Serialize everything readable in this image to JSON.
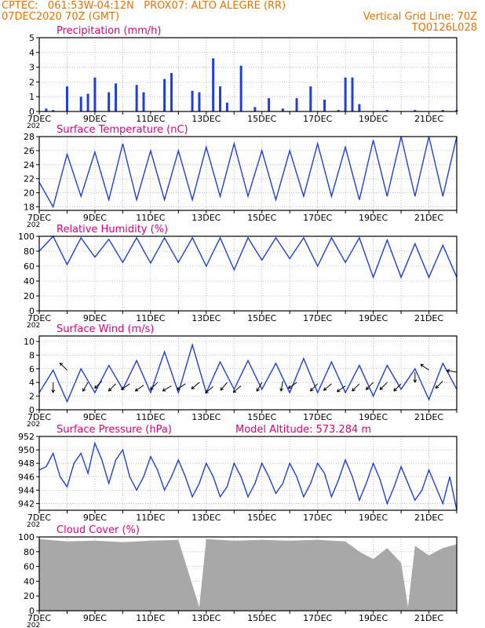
{
  "header": {
    "line1": "CPTEC:   061:53W-04:12N   PROX07: ALTO ALEGRE (RR)",
    "line2_left": "07DEC2020 70Z (GMT)",
    "line2_right": "Vertical Grid Line: 70Z",
    "line3_right": "TQ0126L028"
  },
  "colors": {
    "header": "#e67300",
    "title": "#e0007a",
    "series": "#1f3fdd",
    "cloud": "#a8a8a8",
    "arrow": "#000000"
  },
  "x_axis": {
    "start": "2020-12-07",
    "end": "2020-12-22",
    "ticks": [
      "7DEC",
      "9DEC",
      "11DEC",
      "13DEC",
      "15DEC",
      "17DEC",
      "19DEC",
      "21DEC"
    ],
    "cut_label": "202"
  },
  "chart_data": [
    {
      "id": "precip",
      "type": "bar",
      "title": "Precipitation (mm/h)",
      "ylim": [
        0,
        5
      ],
      "yticks": [
        0,
        1,
        2,
        3,
        4,
        5
      ],
      "x": [
        "2020-12-07T06",
        "2020-12-07T12",
        "2020-12-08T00",
        "2020-12-08T12",
        "2020-12-08T18",
        "2020-12-09T00",
        "2020-12-09T12",
        "2020-12-09T18",
        "2020-12-10T12",
        "2020-12-10T18",
        "2020-12-11T12",
        "2020-12-11T18",
        "2020-12-12T12",
        "2020-12-12T18",
        "2020-12-13T06",
        "2020-12-13T12",
        "2020-12-13T18",
        "2020-12-14T06",
        "2020-12-14T18",
        "2020-12-15T06",
        "2020-12-15T18",
        "2020-12-16T06",
        "2020-12-16T18",
        "2020-12-17T06",
        "2020-12-17T18",
        "2020-12-18T00",
        "2020-12-18T06",
        "2020-12-18T12",
        "2020-12-19T12",
        "2020-12-20T12",
        "2020-12-21T12",
        "2020-12-22T00"
      ],
      "values": [
        0.2,
        0.1,
        1.7,
        1.0,
        1.2,
        2.3,
        1.3,
        1.9,
        1.8,
        1.3,
        2.2,
        2.6,
        1.4,
        1.3,
        3.6,
        1.7,
        0.6,
        3.1,
        0.3,
        0.9,
        0.2,
        0.9,
        1.7,
        0.8,
        0.1,
        2.3,
        2.3,
        0.5,
        0.1,
        0.1,
        0.1,
        0.1
      ]
    },
    {
      "id": "temp",
      "type": "line",
      "title": "Surface Temperature (nC)",
      "ylim": [
        17.5,
        28
      ],
      "yticks": [
        18,
        20,
        22,
        24,
        26,
        28
      ],
      "x": [
        "2020-12-07T00",
        "2020-12-07T12",
        "2020-12-08T00",
        "2020-12-08T12",
        "2020-12-09T00",
        "2020-12-09T12",
        "2020-12-10T00",
        "2020-12-10T12",
        "2020-12-11T00",
        "2020-12-11T12",
        "2020-12-12T00",
        "2020-12-12T12",
        "2020-12-13T00",
        "2020-12-13T12",
        "2020-12-14T00",
        "2020-12-14T12",
        "2020-12-15T00",
        "2020-12-15T12",
        "2020-12-16T00",
        "2020-12-16T12",
        "2020-12-17T00",
        "2020-12-17T12",
        "2020-12-18T00",
        "2020-12-18T12",
        "2020-12-19T00",
        "2020-12-19T12",
        "2020-12-20T00",
        "2020-12-20T12",
        "2020-12-21T00",
        "2020-12-21T12",
        "2020-12-22T00"
      ],
      "values": [
        21.5,
        18.0,
        25.5,
        19.5,
        25.8,
        19.0,
        27.0,
        19.0,
        26.0,
        19.0,
        26.0,
        19.0,
        26.5,
        19.5,
        27.0,
        19.5,
        26.0,
        19.0,
        26.0,
        19.5,
        27.0,
        19.5,
        26.5,
        19.0,
        27.5,
        19.5,
        28.0,
        19.5,
        28.0,
        19.5,
        28.0
      ]
    },
    {
      "id": "rh",
      "type": "line",
      "title": "Relative Humidity (%)",
      "ylim": [
        0,
        100
      ],
      "yticks": [
        0,
        20,
        40,
        60,
        80,
        100
      ],
      "x": [
        "2020-12-07T00",
        "2020-12-07T12",
        "2020-12-08T00",
        "2020-12-08T12",
        "2020-12-09T00",
        "2020-12-09T12",
        "2020-12-10T00",
        "2020-12-10T12",
        "2020-12-11T00",
        "2020-12-11T12",
        "2020-12-12T00",
        "2020-12-12T12",
        "2020-12-13T00",
        "2020-12-13T12",
        "2020-12-14T00",
        "2020-12-14T12",
        "2020-12-15T00",
        "2020-12-15T12",
        "2020-12-16T00",
        "2020-12-16T12",
        "2020-12-17T00",
        "2020-12-17T12",
        "2020-12-18T00",
        "2020-12-18T12",
        "2020-12-19T00",
        "2020-12-19T12",
        "2020-12-20T00",
        "2020-12-20T12",
        "2020-12-21T00",
        "2020-12-21T12",
        "2020-12-22T00"
      ],
      "values": [
        80,
        100,
        62,
        98,
        72,
        96,
        65,
        98,
        64,
        98,
        65,
        98,
        60,
        98,
        55,
        98,
        68,
        98,
        70,
        98,
        60,
        98,
        65,
        98,
        45,
        95,
        45,
        90,
        45,
        88,
        45
      ]
    },
    {
      "id": "wind",
      "type": "line",
      "title": "Surface Wind (m/s)",
      "ylim": [
        0,
        10.8
      ],
      "yticks": [
        0,
        2,
        4,
        6,
        8,
        10
      ],
      "x": [
        "2020-12-07T00",
        "2020-12-07T12",
        "2020-12-08T00",
        "2020-12-08T12",
        "2020-12-09T00",
        "2020-12-09T12",
        "2020-12-10T00",
        "2020-12-10T12",
        "2020-12-11T00",
        "2020-12-11T12",
        "2020-12-12T00",
        "2020-12-12T12",
        "2020-12-13T00",
        "2020-12-13T12",
        "2020-12-14T00",
        "2020-12-14T12",
        "2020-12-15T00",
        "2020-12-15T12",
        "2020-12-16T00",
        "2020-12-16T12",
        "2020-12-17T00",
        "2020-12-17T12",
        "2020-12-18T00",
        "2020-12-18T12",
        "2020-12-19T00",
        "2020-12-19T12",
        "2020-12-20T00",
        "2020-12-20T12",
        "2020-12-21T00",
        "2020-12-21T12",
        "2020-12-22T00"
      ],
      "values": [
        2.5,
        5.8,
        1.2,
        6.0,
        2.5,
        6.5,
        3.0,
        7.2,
        2.5,
        8.5,
        2.5,
        9.5,
        2.5,
        7.0,
        3.0,
        7.2,
        3.0,
        6.8,
        2.5,
        7.5,
        2.5,
        7.0,
        2.5,
        6.5,
        2.0,
        6.5,
        3.0,
        6.0,
        1.5,
        6.8,
        3.0
      ],
      "arrows": [
        {
          "x": "2020-12-07T12",
          "y": 4.0,
          "angle": 270
        },
        {
          "x": "2020-12-08T00",
          "y": 5.8,
          "angle": 135
        },
        {
          "x": "2020-12-08T18",
          "y": 4.0,
          "angle": 240
        },
        {
          "x": "2020-12-09T06",
          "y": 4.2,
          "angle": 225
        },
        {
          "x": "2020-12-09T18",
          "y": 3.8,
          "angle": 225
        },
        {
          "x": "2020-12-10T06",
          "y": 3.8,
          "angle": 215
        },
        {
          "x": "2020-12-10T18",
          "y": 3.6,
          "angle": 215
        },
        {
          "x": "2020-12-11T06",
          "y": 4.0,
          "angle": 225
        },
        {
          "x": "2020-12-11T18",
          "y": 3.5,
          "angle": 210
        },
        {
          "x": "2020-12-12T06",
          "y": 3.8,
          "angle": 215
        },
        {
          "x": "2020-12-12T18",
          "y": 4.0,
          "angle": 220
        },
        {
          "x": "2020-12-13T06",
          "y": 3.4,
          "angle": 220
        },
        {
          "x": "2020-12-13T18",
          "y": 4.0,
          "angle": 230
        },
        {
          "x": "2020-12-14T06",
          "y": 3.5,
          "angle": 220
        },
        {
          "x": "2020-12-15T00",
          "y": 4.0,
          "angle": 240
        },
        {
          "x": "2020-12-15T18",
          "y": 4.2,
          "angle": 260
        },
        {
          "x": "2020-12-16T06",
          "y": 4.0,
          "angle": 215
        },
        {
          "x": "2020-12-17T00",
          "y": 3.8,
          "angle": 225
        },
        {
          "x": "2020-12-17T12",
          "y": 3.8,
          "angle": 220
        },
        {
          "x": "2020-12-18T00",
          "y": 3.5,
          "angle": 215
        },
        {
          "x": "2020-12-18T12",
          "y": 3.8,
          "angle": 225
        },
        {
          "x": "2020-12-19T00",
          "y": 4.0,
          "angle": 225
        },
        {
          "x": "2020-12-19T12",
          "y": 4.0,
          "angle": 225
        },
        {
          "x": "2020-12-20T00",
          "y": 3.8,
          "angle": 225
        },
        {
          "x": "2020-12-20T12",
          "y": 5.5,
          "angle": 270
        },
        {
          "x": "2020-12-21T00",
          "y": 5.8,
          "angle": 145
        },
        {
          "x": "2020-12-21T12",
          "y": 4.2,
          "angle": 225
        },
        {
          "x": "2020-12-22T00",
          "y": 5.5,
          "angle": 170
        }
      ]
    },
    {
      "id": "press",
      "type": "line",
      "title": "Surface Pressure (hPa)",
      "subtitle": "Model Altitude: 573.284  m",
      "ylim": [
        941,
        952
      ],
      "yticks": [
        942,
        944,
        946,
        948,
        950,
        952
      ],
      "x": [
        "2020-12-07T00",
        "2020-12-07T06",
        "2020-12-07T12",
        "2020-12-07T18",
        "2020-12-08T00",
        "2020-12-08T06",
        "2020-12-08T12",
        "2020-12-08T18",
        "2020-12-09T00",
        "2020-12-09T06",
        "2020-12-09T12",
        "2020-12-09T18",
        "2020-12-10T00",
        "2020-12-10T06",
        "2020-12-10T12",
        "2020-12-10T18",
        "2020-12-11T00",
        "2020-12-11T06",
        "2020-12-11T12",
        "2020-12-11T18",
        "2020-12-12T00",
        "2020-12-12T06",
        "2020-12-12T12",
        "2020-12-12T18",
        "2020-12-13T00",
        "2020-12-13T06",
        "2020-12-13T12",
        "2020-12-13T18",
        "2020-12-14T00",
        "2020-12-14T06",
        "2020-12-14T12",
        "2020-12-14T18",
        "2020-12-15T00",
        "2020-12-15T06",
        "2020-12-15T12",
        "2020-12-15T18",
        "2020-12-16T00",
        "2020-12-16T06",
        "2020-12-16T12",
        "2020-12-16T18",
        "2020-12-17T00",
        "2020-12-17T06",
        "2020-12-17T12",
        "2020-12-17T18",
        "2020-12-18T00",
        "2020-12-18T06",
        "2020-12-18T12",
        "2020-12-18T18",
        "2020-12-19T00",
        "2020-12-19T06",
        "2020-12-19T12",
        "2020-12-19T18",
        "2020-12-20T00",
        "2020-12-20T06",
        "2020-12-20T12",
        "2020-12-20T18",
        "2020-12-21T00",
        "2020-12-21T06",
        "2020-12-21T12",
        "2020-12-21T18",
        "2020-12-22T00"
      ],
      "values": [
        947.0,
        947.5,
        949.5,
        946.0,
        944.5,
        948.0,
        949.5,
        946.5,
        951.0,
        948.5,
        945.0,
        948.5,
        950.0,
        946.0,
        944.0,
        946.0,
        949.0,
        947.0,
        944.0,
        946.0,
        948.5,
        946.0,
        943.0,
        945.0,
        948.0,
        946.0,
        943.0,
        944.5,
        948.0,
        946.0,
        943.0,
        945.0,
        948.0,
        946.0,
        943.5,
        945.0,
        948.0,
        946.0,
        943.0,
        945.0,
        948.0,
        946.5,
        943.0,
        945.5,
        948.5,
        946.0,
        942.5,
        945.0,
        948.0,
        945.5,
        942.0,
        944.5,
        947.5,
        945.0,
        942.5,
        944.0,
        947.0,
        944.5,
        942.0,
        946.0,
        941.0
      ]
    },
    {
      "id": "cloud",
      "type": "area",
      "title": "Cloud Cover (%)",
      "ylim": [
        0,
        100
      ],
      "yticks": [
        0,
        20,
        40,
        60,
        80,
        100
      ],
      "x": [
        "2020-12-07T00",
        "2020-12-08T00",
        "2020-12-09T00",
        "2020-12-10T00",
        "2020-12-11T00",
        "2020-12-12T00",
        "2020-12-12T18",
        "2020-12-13T00",
        "2020-12-14T00",
        "2020-12-15T00",
        "2020-12-16T00",
        "2020-12-17T00",
        "2020-12-18T00",
        "2020-12-18T12",
        "2020-12-19T00",
        "2020-12-19T12",
        "2020-12-20T00",
        "2020-12-20T06",
        "2020-12-20T12",
        "2020-12-21T00",
        "2020-12-21T12",
        "2020-12-22T00"
      ],
      "values": [
        97,
        94,
        95,
        93,
        95,
        96,
        5,
        97,
        95,
        96,
        95,
        96,
        94,
        80,
        70,
        85,
        65,
        5,
        88,
        75,
        85,
        90
      ]
    }
  ]
}
